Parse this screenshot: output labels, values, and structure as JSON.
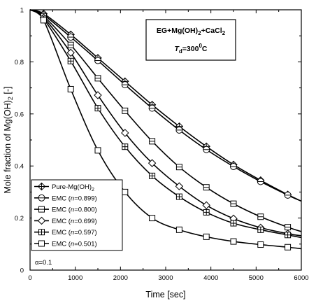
{
  "chart_data": {
    "type": "line",
    "title": "",
    "xlabel": "Time [sec]",
    "ylabel": {
      "prefix": "Mole fraction of Mg(OH)",
      "sub": "2",
      "suffix": " [-]"
    },
    "xlim": [
      0,
      6000
    ],
    "ylim": [
      0,
      1
    ],
    "x_ticks": [
      "0",
      "1000",
      "2000",
      "3000",
      "4000",
      "5000",
      "6000"
    ],
    "y_ticks": [
      "0",
      "0.2",
      "0.4",
      "0.6",
      "0.8",
      "1"
    ],
    "grid": false,
    "legend_position": "bottom-left",
    "annotation": {
      "line1": {
        "a": "EG+Mg(OH)",
        "b": "2",
        "c": "+CaCl",
        "d": "2"
      },
      "line2": {
        "a": "T",
        "b": "d",
        "c": "=300",
        "d": "0",
        "e": "C"
      },
      "alpha_label": "α=0.1"
    },
    "series": [
      {
        "name": "Pure-Mg(OH)2",
        "legend": {
          "pre": "Pure-Mg(OH)",
          "sub": "2",
          "n": "",
          "post": ""
        },
        "marker": "diamond-cross",
        "x": [
          0,
          300,
          900,
          1500,
          2100,
          2700,
          3300,
          3900,
          4500,
          5100,
          5700,
          6000
        ],
        "y": [
          1.0,
          0.985,
          0.905,
          0.815,
          0.725,
          0.635,
          0.552,
          0.475,
          0.405,
          0.345,
          0.29,
          0.265
        ]
      },
      {
        "name": "EMC (n=0.899)",
        "legend": {
          "pre": "EMC (",
          "sub": "",
          "n": "n",
          "post": "=0.899)"
        },
        "marker": "circle-line",
        "x": [
          0,
          300,
          900,
          1500,
          2100,
          2700,
          3300,
          3900,
          4500,
          5100,
          5700,
          6000
        ],
        "y": [
          1.0,
          0.98,
          0.895,
          0.805,
          0.712,
          0.622,
          0.538,
          0.463,
          0.398,
          0.34,
          0.288,
          0.265
        ]
      },
      {
        "name": "EMC (n=0.800)",
        "legend": {
          "pre": "EMC (",
          "sub": "",
          "n": "n",
          "post": "=0.800)"
        },
        "marker": "square-line",
        "x": [
          0,
          300,
          900,
          1500,
          2100,
          2700,
          3300,
          3900,
          4500,
          5100,
          5700,
          6000
        ],
        "y": [
          1.0,
          0.975,
          0.865,
          0.737,
          0.612,
          0.495,
          0.396,
          0.318,
          0.255,
          0.205,
          0.165,
          0.148
        ]
      },
      {
        "name": "EMC (n=0.699)",
        "legend": {
          "pre": "EMC (",
          "sub": "",
          "n": "n",
          "post": "=0.699)"
        },
        "marker": "diamond",
        "x": [
          0,
          300,
          900,
          1500,
          2100,
          2700,
          3300,
          3900,
          4500,
          5100,
          5700,
          6000
        ],
        "y": [
          1.0,
          0.97,
          0.835,
          0.672,
          0.527,
          0.411,
          0.322,
          0.249,
          0.198,
          0.163,
          0.14,
          0.132
        ]
      },
      {
        "name": "EMC (n=0.597)",
        "legend": {
          "pre": "EMC (",
          "sub": "",
          "n": "n",
          "post": "=0.597)"
        },
        "marker": "square-plus",
        "x": [
          0,
          300,
          900,
          1500,
          2100,
          2700,
          3300,
          3900,
          4500,
          5100,
          5700,
          6000
        ],
        "y": [
          1.0,
          0.965,
          0.803,
          0.622,
          0.474,
          0.362,
          0.282,
          0.222,
          0.18,
          0.155,
          0.135,
          0.125
        ]
      },
      {
        "name": "EMC (n=0.501)",
        "legend": {
          "pre": "EMC (",
          "sub": "",
          "n": "n",
          "post": "=0.501)"
        },
        "marker": "square-open",
        "x": [
          0,
          300,
          900,
          1500,
          2100,
          2700,
          3300,
          3900,
          4500,
          5100,
          5700,
          6000
        ],
        "y": [
          1.0,
          0.96,
          0.695,
          0.46,
          0.3,
          0.2,
          0.155,
          0.128,
          0.11,
          0.098,
          0.088,
          0.082
        ]
      }
    ]
  }
}
